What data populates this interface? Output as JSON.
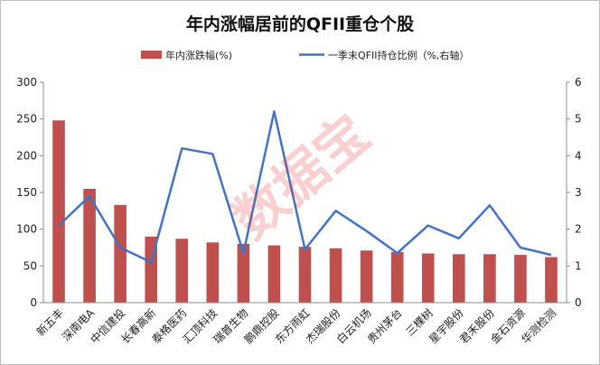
{
  "chart_data": {
    "type": "bar",
    "title": "年内涨幅居前的QFII重仓个股",
    "categories": [
      "新五丰",
      "深南电A",
      "中信建投",
      "长春高新",
      "泰格医药",
      "汇顶科技",
      "瑞普生物",
      "鹏鼎控股",
      "东方雨虹",
      "杰瑞股份",
      "白云机场",
      "贵州茅台",
      "三棵树",
      "星宇股份",
      "君禾股份",
      "金石资源",
      "华测检测"
    ],
    "series": [
      {
        "name": "年内涨跌幅(%)",
        "type": "bar",
        "axis": "left",
        "color": "#c0504d",
        "values": [
          248,
          155,
          133,
          90,
          87,
          82,
          80,
          78,
          76,
          74,
          71,
          69,
          67,
          66,
          66,
          65,
          62
        ]
      },
      {
        "name": "一季末QFII持仓比例（%,右轴）",
        "type": "line",
        "axis": "right",
        "color": "#4472c4",
        "values": [
          2.1,
          2.9,
          1.5,
          1.1,
          4.2,
          4.05,
          1.35,
          5.2,
          1.45,
          2.5,
          1.95,
          1.35,
          2.1,
          1.75,
          2.65,
          1.5,
          1.3
        ]
      }
    ],
    "ylim": [
      0,
      300
    ],
    "yticks": [
      0,
      50,
      100,
      150,
      200,
      250,
      300
    ],
    "y2lim": [
      0,
      6
    ],
    "y2ticks": [
      0,
      1,
      2,
      3,
      4,
      5,
      6
    ],
    "legend_position": "top",
    "grid": false,
    "watermark": "数据宝"
  }
}
